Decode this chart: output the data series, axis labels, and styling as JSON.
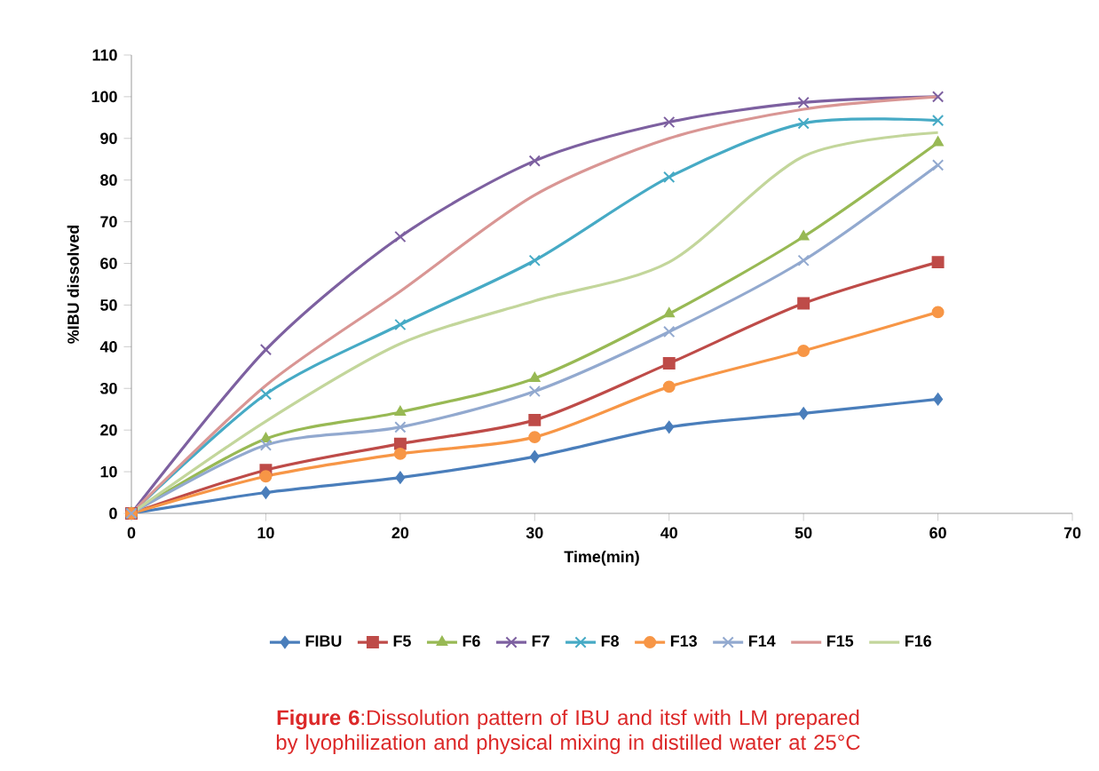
{
  "chart_data": {
    "type": "line",
    "xlabel": "Time(min)",
    "ylabel": "%IBU dissolved",
    "x": [
      0,
      10,
      20,
      30,
      40,
      50,
      60
    ],
    "series": [
      {
        "name": "FIBU",
        "color": "#4a7ebb",
        "marker": "diamond",
        "values": [
          0,
          5,
          8.6,
          13.6,
          20.7,
          24,
          27.4
        ]
      },
      {
        "name": "F5",
        "color": "#be4b48",
        "marker": "square",
        "values": [
          0,
          10.4,
          16.7,
          22.4,
          36,
          50.4,
          60.3
        ]
      },
      {
        "name": "F6",
        "color": "#98b954",
        "marker": "triangle",
        "values": [
          0,
          17.9,
          24.3,
          32.4,
          47.9,
          66.4,
          89
        ]
      },
      {
        "name": "F7",
        "color": "#7d60a0",
        "marker": "cross",
        "values": [
          0,
          39.3,
          66.4,
          84.6,
          93.9,
          98.6,
          100
        ]
      },
      {
        "name": "F8",
        "color": "#46aac5",
        "marker": "cross",
        "values": [
          0,
          28.6,
          45.3,
          60.7,
          80.7,
          93.6,
          94.3
        ]
      },
      {
        "name": "F13",
        "color": "#f79646",
        "marker": "circle",
        "values": [
          0,
          8.9,
          14.3,
          18.3,
          30.4,
          39,
          48.3
        ]
      },
      {
        "name": "F14",
        "color": "#92a9cf",
        "marker": "cross",
        "values": [
          0,
          16.4,
          20.7,
          29.3,
          43.6,
          60.7,
          83.6
        ]
      },
      {
        "name": "F15",
        "color": "#d99694",
        "marker": "none",
        "values": [
          0,
          30.7,
          53.3,
          76.4,
          90,
          97,
          100
        ]
      },
      {
        "name": "F16",
        "color": "#c3d69b",
        "marker": "none",
        "values": [
          0,
          22.1,
          40.7,
          51,
          60.3,
          85.7,
          91.4
        ]
      }
    ],
    "xlim": [
      0,
      70
    ],
    "xticks": [
      0,
      10,
      20,
      30,
      40,
      50,
      60,
      70
    ],
    "ylim": [
      0,
      110
    ],
    "yticks": [
      0,
      10,
      20,
      30,
      40,
      50,
      60,
      70,
      80,
      90,
      100,
      110
    ],
    "grid": false,
    "legend": "bottom",
    "annotations": [
      "**Figure 6**:Dissolution pattern of IBU and itsf with LM prepared by lyophilization and physical mixing in distilled water at 25°C"
    ]
  }
}
